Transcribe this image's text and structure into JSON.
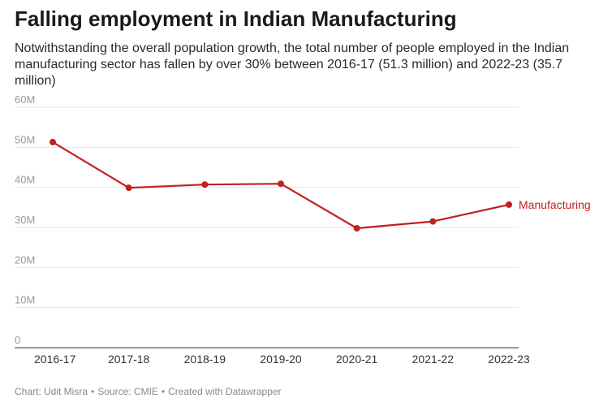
{
  "title": "Falling employment in Indian Manufacturing",
  "subtitle": "Notwithstanding the overall population growth, the total number of people employed in the Indian manufacturing sector has fallen by over 30% between 2016-17 (51.3 million) and 2022-23 (35.7 million)",
  "footer": {
    "chart_credit": "Chart: Udit Misra",
    "source": "Source: CMIE",
    "created_with": "Created with Datawrapper",
    "separator": "•"
  },
  "colors": {
    "series": "#c0201f",
    "grid": "#e6e6e6",
    "axis": "#333333"
  },
  "chart_data": {
    "type": "line",
    "categories": [
      "2016-17",
      "2017-18",
      "2018-19",
      "2019-20",
      "2020-21",
      "2021-22",
      "2022-23"
    ],
    "series": [
      {
        "name": "Manufacturing",
        "values": [
          51.3,
          39.9,
          40.7,
          40.9,
          29.8,
          31.5,
          35.7
        ]
      }
    ],
    "ylim": [
      0,
      60
    ],
    "yticks": [
      0,
      10,
      20,
      30,
      40,
      50,
      60
    ],
    "ytick_labels": [
      "0",
      "10M",
      "20M",
      "30M",
      "40M",
      "50M",
      "60M"
    ],
    "grid": true,
    "legend": "direct label at line end",
    "xlabel": "",
    "ylabel": ""
  }
}
